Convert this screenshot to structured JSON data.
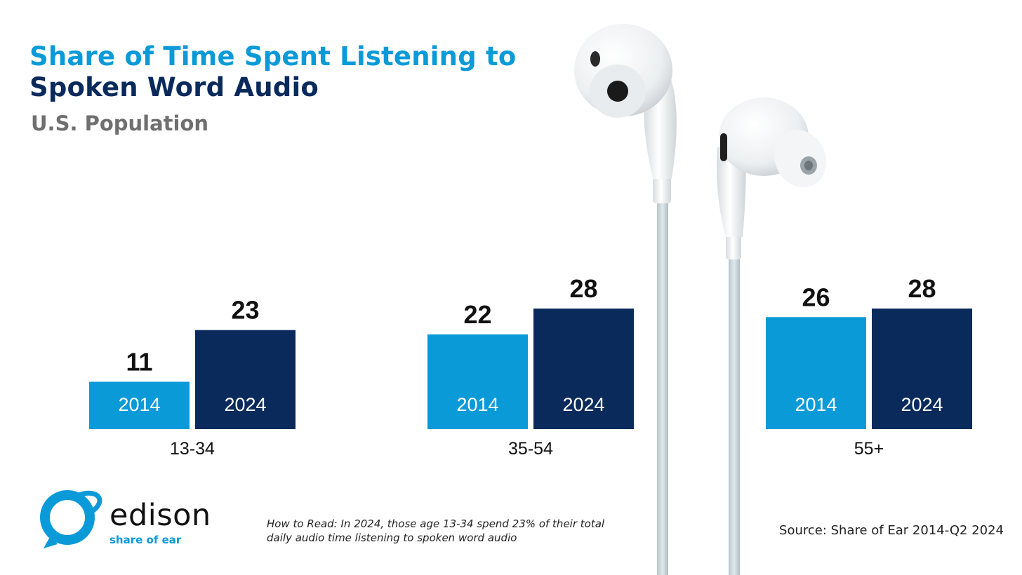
{
  "header": {
    "title_line1": "Share of Time Spent Listening to",
    "title_line2": "Spoken Word Audio",
    "subtitle": "U.S. Population"
  },
  "colors": {
    "bar_2014": "#0b9ad8",
    "bar_2024": "#0a2a5c",
    "title_line1": "#0b9ad8",
    "title_line2": "#0a2a5c"
  },
  "chart_data": {
    "type": "bar",
    "categories": [
      "13-34",
      "35-54",
      "55+"
    ],
    "series": [
      {
        "name": "2014",
        "values": [
          11,
          22,
          26
        ]
      },
      {
        "name": "2024",
        "values": [
          23,
          28,
          28
        ]
      }
    ],
    "ylim": [
      0,
      28
    ],
    "grid": false
  },
  "footer": {
    "logo_word": "edison",
    "logo_tagline": "share of ear",
    "note": "How to Read: In 2024, those age 13-34 spend 23% of their total daily audio time listening to spoken word audio",
    "source": "Source: Share of Ear 2014-Q2 2024"
  }
}
